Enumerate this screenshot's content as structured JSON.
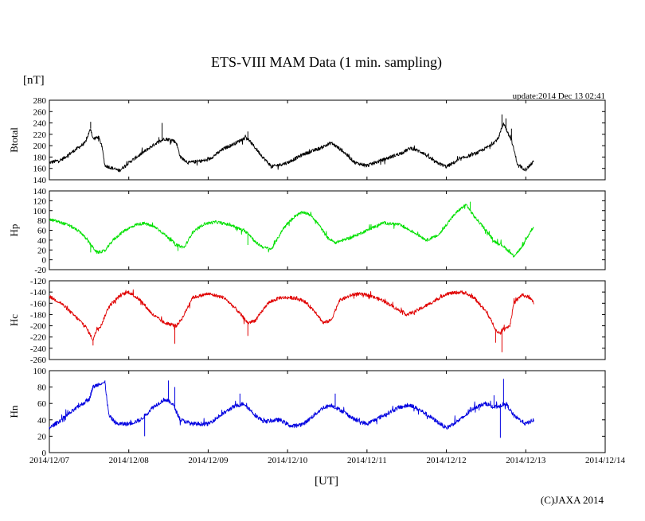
{
  "title": "ETS-VIII MAM Data (1 min. sampling)",
  "unit_label": "[nT]",
  "update_text": "update:2014 Dec 13 02:41",
  "xlabel": "[UT]",
  "copyright": "(C)JAXA 2014",
  "chart_data": {
    "type": "line",
    "x_tick_labels": [
      "2014/12/07",
      "2014/12/08",
      "2014/12/09",
      "2014/12/10",
      "2014/12/11",
      "2014/12/12",
      "2014/12/13",
      "2014/12/14"
    ],
    "xlim_days": [
      0,
      7
    ],
    "data_end_day": 6.1,
    "panels": [
      {
        "name": "Btotal",
        "color": "#000000",
        "ylim": [
          140,
          280
        ],
        "yticks": [
          140,
          160,
          180,
          200,
          220,
          240,
          260,
          280
        ],
        "noise": 3,
        "points": [
          [
            0,
            170
          ],
          [
            0.15,
            175
          ],
          [
            0.3,
            190
          ],
          [
            0.45,
            205
          ],
          [
            0.52,
            230
          ],
          [
            0.55,
            212
          ],
          [
            0.62,
            215
          ],
          [
            0.66,
            200
          ],
          [
            0.7,
            165
          ],
          [
            0.8,
            160
          ],
          [
            0.88,
            156
          ],
          [
            1.0,
            170
          ],
          [
            1.2,
            190
          ],
          [
            1.35,
            205
          ],
          [
            1.45,
            212
          ],
          [
            1.55,
            210
          ],
          [
            1.6,
            205
          ],
          [
            1.65,
            180
          ],
          [
            1.75,
            170
          ],
          [
            2.0,
            175
          ],
          [
            2.2,
            195
          ],
          [
            2.35,
            205
          ],
          [
            2.48,
            215
          ],
          [
            2.6,
            195
          ],
          [
            2.7,
            178
          ],
          [
            2.8,
            163
          ],
          [
            3.0,
            170
          ],
          [
            3.2,
            185
          ],
          [
            3.4,
            195
          ],
          [
            3.55,
            205
          ],
          [
            3.7,
            190
          ],
          [
            3.85,
            170
          ],
          [
            4.0,
            165
          ],
          [
            4.2,
            175
          ],
          [
            4.45,
            188
          ],
          [
            4.55,
            196
          ],
          [
            4.7,
            188
          ],
          [
            4.85,
            172
          ],
          [
            5.0,
            163
          ],
          [
            5.2,
            178
          ],
          [
            5.4,
            188
          ],
          [
            5.55,
            200
          ],
          [
            5.65,
            212
          ],
          [
            5.72,
            240
          ],
          [
            5.78,
            220
          ],
          [
            5.82,
            210
          ],
          [
            5.9,
            165
          ],
          [
            6.0,
            158
          ],
          [
            6.1,
            172
          ]
        ],
        "spikes": [
          [
            0.52,
            242
          ],
          [
            1.38,
            215
          ],
          [
            1.42,
            240
          ],
          [
            2.5,
            225
          ],
          [
            5.7,
            255
          ],
          [
            5.75,
            248
          ],
          [
            5.82,
            230
          ]
        ]
      },
      {
        "name": "Hp",
        "color": "#00e000",
        "ylim": [
          -20,
          140
        ],
        "yticks": [
          -20,
          0,
          20,
          40,
          60,
          80,
          100,
          120,
          140
        ],
        "noise": 3,
        "points": [
          [
            0,
            82
          ],
          [
            0.1,
            78
          ],
          [
            0.25,
            70
          ],
          [
            0.4,
            55
          ],
          [
            0.5,
            35
          ],
          [
            0.6,
            15
          ],
          [
            0.7,
            18
          ],
          [
            0.8,
            40
          ],
          [
            0.95,
            60
          ],
          [
            1.1,
            72
          ],
          [
            1.2,
            74
          ],
          [
            1.35,
            65
          ],
          [
            1.5,
            45
          ],
          [
            1.6,
            30
          ],
          [
            1.7,
            25
          ],
          [
            1.8,
            55
          ],
          [
            1.95,
            73
          ],
          [
            2.1,
            77
          ],
          [
            2.3,
            70
          ],
          [
            2.5,
            55
          ],
          [
            2.6,
            35
          ],
          [
            2.7,
            25
          ],
          [
            2.8,
            22
          ],
          [
            2.95,
            65
          ],
          [
            3.1,
            90
          ],
          [
            3.2,
            97
          ],
          [
            3.3,
            90
          ],
          [
            3.4,
            70
          ],
          [
            3.5,
            45
          ],
          [
            3.6,
            35
          ],
          [
            3.8,
            45
          ],
          [
            4.0,
            60
          ],
          [
            4.2,
            75
          ],
          [
            4.4,
            72
          ],
          [
            4.6,
            55
          ],
          [
            4.75,
            40
          ],
          [
            4.9,
            50
          ],
          [
            5.05,
            82
          ],
          [
            5.15,
            100
          ],
          [
            5.25,
            112
          ],
          [
            5.35,
            88
          ],
          [
            5.5,
            60
          ],
          [
            5.6,
            38
          ],
          [
            5.7,
            30
          ],
          [
            5.85,
            8
          ],
          [
            5.95,
            25
          ],
          [
            6.05,
            55
          ],
          [
            6.1,
            68
          ]
        ],
        "spikes": [
          [
            0.52,
            15
          ],
          [
            1.62,
            18
          ],
          [
            2.5,
            30
          ],
          [
            5.3,
            118
          ]
        ]
      },
      {
        "name": "Hc",
        "color": "#e00000",
        "ylim": [
          -260,
          -120
        ],
        "yticks": [
          -260,
          -240,
          -220,
          -200,
          -180,
          -160,
          -140,
          -120
        ],
        "noise": 3,
        "points": [
          [
            0,
            -148
          ],
          [
            0.15,
            -160
          ],
          [
            0.3,
            -180
          ],
          [
            0.45,
            -200
          ],
          [
            0.55,
            -225
          ],
          [
            0.6,
            -205
          ],
          [
            0.65,
            -200
          ],
          [
            0.75,
            -165
          ],
          [
            0.9,
            -145
          ],
          [
            1.0,
            -140
          ],
          [
            1.15,
            -155
          ],
          [
            1.3,
            -180
          ],
          [
            1.45,
            -195
          ],
          [
            1.6,
            -200
          ],
          [
            1.68,
            -185
          ],
          [
            1.8,
            -150
          ],
          [
            2.0,
            -143
          ],
          [
            2.2,
            -150
          ],
          [
            2.35,
            -170
          ],
          [
            2.5,
            -195
          ],
          [
            2.6,
            -190
          ],
          [
            2.75,
            -160
          ],
          [
            2.9,
            -150
          ],
          [
            3.05,
            -150
          ],
          [
            3.2,
            -155
          ],
          [
            3.35,
            -175
          ],
          [
            3.45,
            -195
          ],
          [
            3.55,
            -190
          ],
          [
            3.65,
            -155
          ],
          [
            3.85,
            -143
          ],
          [
            4.0,
            -145
          ],
          [
            4.2,
            -155
          ],
          [
            4.4,
            -172
          ],
          [
            4.5,
            -180
          ],
          [
            4.6,
            -175
          ],
          [
            4.8,
            -160
          ],
          [
            5.0,
            -143
          ],
          [
            5.2,
            -140
          ],
          [
            5.35,
            -150
          ],
          [
            5.5,
            -175
          ],
          [
            5.6,
            -200
          ],
          [
            5.65,
            -215
          ],
          [
            5.72,
            -205
          ],
          [
            5.8,
            -200
          ],
          [
            5.85,
            -160
          ],
          [
            5.95,
            -145
          ],
          [
            6.05,
            -150
          ],
          [
            6.1,
            -160
          ]
        ],
        "spikes": [
          [
            0.55,
            -235
          ],
          [
            1.58,
            -232
          ],
          [
            2.5,
            -218
          ],
          [
            5.7,
            -247
          ],
          [
            5.62,
            -230
          ]
        ]
      },
      {
        "name": "Hn",
        "color": "#0000e0",
        "ylim": [
          0,
          100
        ],
        "yticks": [
          0,
          20,
          40,
          60,
          80,
          100
        ],
        "noise": 2.5,
        "points": [
          [
            0,
            30
          ],
          [
            0.15,
            40
          ],
          [
            0.35,
            55
          ],
          [
            0.5,
            65
          ],
          [
            0.55,
            80
          ],
          [
            0.65,
            85
          ],
          [
            0.7,
            85
          ],
          [
            0.75,
            45
          ],
          [
            0.85,
            35
          ],
          [
            1.0,
            35
          ],
          [
            1.15,
            40
          ],
          [
            1.3,
            55
          ],
          [
            1.45,
            65
          ],
          [
            1.55,
            60
          ],
          [
            1.65,
            40
          ],
          [
            1.8,
            35
          ],
          [
            2.0,
            35
          ],
          [
            2.15,
            45
          ],
          [
            2.3,
            55
          ],
          [
            2.45,
            60
          ],
          [
            2.6,
            45
          ],
          [
            2.7,
            38
          ],
          [
            2.9,
            40
          ],
          [
            3.05,
            32
          ],
          [
            3.2,
            35
          ],
          [
            3.45,
            55
          ],
          [
            3.55,
            58
          ],
          [
            3.7,
            50
          ],
          [
            3.85,
            40
          ],
          [
            4.0,
            35
          ],
          [
            4.2,
            45
          ],
          [
            4.4,
            55
          ],
          [
            4.55,
            58
          ],
          [
            4.7,
            50
          ],
          [
            4.85,
            40
          ],
          [
            5.0,
            30
          ],
          [
            5.2,
            42
          ],
          [
            5.35,
            55
          ],
          [
            5.5,
            60
          ],
          [
            5.6,
            55
          ],
          [
            5.75,
            60
          ],
          [
            5.85,
            45
          ],
          [
            6.0,
            35
          ],
          [
            6.1,
            40
          ]
        ],
        "spikes": [
          [
            0.7,
            88
          ],
          [
            1.2,
            20
          ],
          [
            1.5,
            88
          ],
          [
            1.58,
            80
          ],
          [
            2.4,
            72
          ],
          [
            3.6,
            72
          ],
          [
            5.72,
            90
          ],
          [
            5.68,
            18
          ],
          [
            5.6,
            70
          ]
        ]
      }
    ]
  }
}
